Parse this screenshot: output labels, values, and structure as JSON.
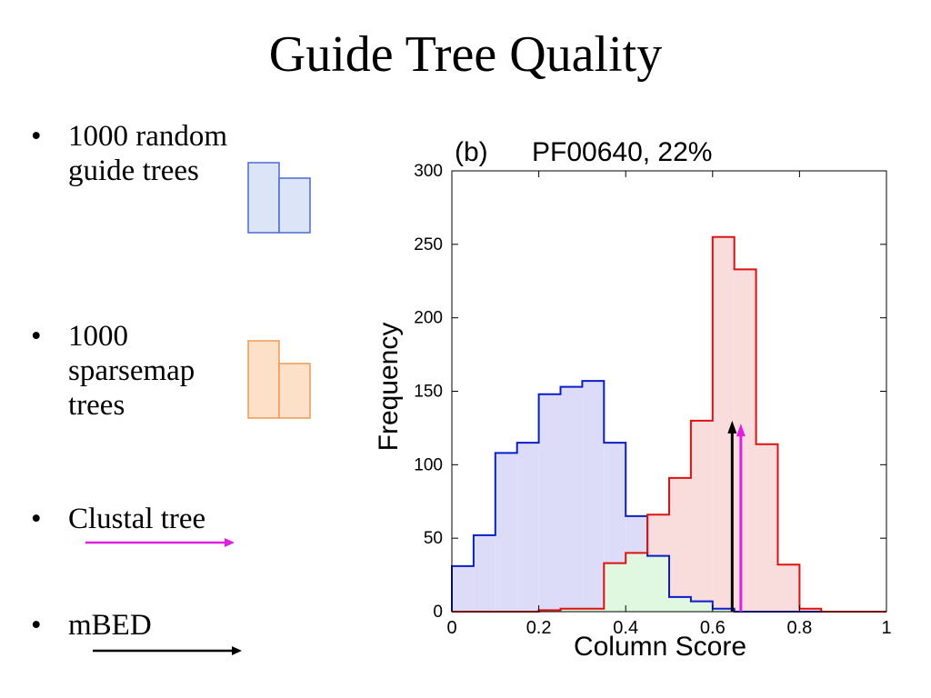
{
  "slide": {
    "title": "Guide Tree Quality",
    "bullets": [
      {
        "lines": [
          "1000 random",
          "guide trees"
        ]
      },
      {
        "lines": [
          "1000",
          "sparsemap",
          "trees"
        ]
      },
      {
        "lines": [
          "Clustal tree"
        ]
      },
      {
        "lines": [
          "mBED"
        ]
      }
    ],
    "bullet_char": "•",
    "legend": {
      "random_trees": {
        "fill": "#dce4f7",
        "stroke": "#4a6ad0"
      },
      "sparsemap_trees": {
        "fill": "#fde0c8",
        "stroke": "#ef9a55"
      },
      "clustal_arrow": {
        "color": "#e020e0"
      },
      "mbed_arrow": {
        "color": "#000000"
      }
    }
  },
  "chart_data": {
    "type": "histogram",
    "panel_label": "(b)",
    "title": "PF00640, 22%",
    "xlabel": "Column Score",
    "ylabel": "Frequency",
    "xlim": [
      0,
      1
    ],
    "ylim": [
      0,
      300
    ],
    "x_ticks": [
      "0",
      "0.2",
      "0.4",
      "0.6",
      "0.8",
      "1"
    ],
    "x_tick_values": [
      0,
      0.2,
      0.4,
      0.6,
      0.8,
      1
    ],
    "y_ticks": [
      "0",
      "50",
      "100",
      "150",
      "200",
      "250",
      "300"
    ],
    "y_tick_values": [
      0,
      50,
      100,
      150,
      200,
      250,
      300
    ],
    "grid": false,
    "bin_edges": [
      0,
      0.05,
      0.1,
      0.15,
      0.2,
      0.25,
      0.3,
      0.35,
      0.4,
      0.45,
      0.5,
      0.55,
      0.6,
      0.65,
      0.7,
      0.75,
      0.8,
      0.85,
      0.9,
      0.95,
      1.0
    ],
    "series": [
      {
        "color": "#0a1ec8",
        "fill": "#dcdcf8",
        "values": [
          31,
          52,
          108,
          115,
          148,
          153,
          157,
          115,
          65,
          38,
          10,
          7,
          2,
          0,
          0,
          0,
          0,
          0,
          0,
          0
        ]
      },
      {
        "color": "#e01010",
        "fill": "#f9dcdc",
        "values": [
          0,
          0,
          0,
          0,
          1,
          2,
          2,
          33,
          40,
          66,
          91,
          130,
          255,
          233,
          114,
          32,
          2,
          0,
          0,
          0
        ]
      }
    ],
    "overlap_fill": "#e0f8e0",
    "arrows": [
      {
        "color": "#000000",
        "x": 0.645,
        "y_from": 0,
        "y_to": 130
      },
      {
        "color": "#e020e0",
        "x": 0.665,
        "y_from": 0,
        "y_to": 128
      }
    ]
  }
}
